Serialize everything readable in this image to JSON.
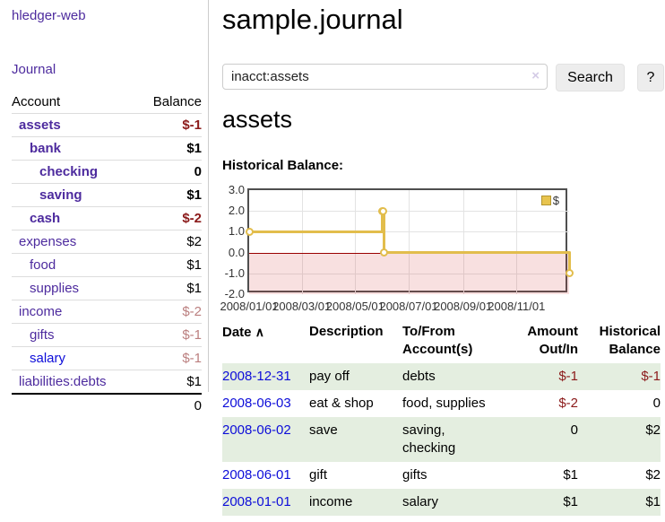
{
  "app": {
    "title": "hledger-web",
    "nav_journal": "Journal"
  },
  "sidebar": {
    "header": {
      "account": "Account",
      "balance": "Balance"
    },
    "rows": [
      {
        "name": "assets",
        "balance": "$-1",
        "depth": 1,
        "bold": true,
        "link_color": "purple",
        "balance_color": "neg-strong"
      },
      {
        "name": "bank",
        "balance": "$1",
        "depth": 2,
        "bold": true,
        "link_color": "purple",
        "balance_color": "default"
      },
      {
        "name": "checking",
        "balance": "0",
        "depth": 3,
        "bold": true,
        "link_color": "purple",
        "balance_color": "default"
      },
      {
        "name": "saving",
        "balance": "$1",
        "depth": 3,
        "bold": true,
        "link_color": "purple",
        "balance_color": "default"
      },
      {
        "name": "cash",
        "balance": "$-2",
        "depth": 2,
        "bold": true,
        "link_color": "purple",
        "balance_color": "neg-strong"
      },
      {
        "name": "expenses",
        "balance": "$2",
        "depth": 1,
        "bold": false,
        "link_color": "purple",
        "balance_color": "default"
      },
      {
        "name": "food",
        "balance": "$1",
        "depth": 2,
        "bold": false,
        "link_color": "purple",
        "balance_color": "default"
      },
      {
        "name": "supplies",
        "balance": "$1",
        "depth": 2,
        "bold": false,
        "link_color": "purple",
        "balance_color": "default"
      },
      {
        "name": "income",
        "balance": "$-2",
        "depth": 1,
        "bold": false,
        "link_color": "purple",
        "balance_color": "neg-soft"
      },
      {
        "name": "gifts",
        "balance": "$-1",
        "depth": 2,
        "bold": false,
        "link_color": "purple",
        "balance_color": "neg-soft"
      },
      {
        "name": "salary",
        "balance": "$-1",
        "depth": 2,
        "bold": false,
        "link_color": "blue",
        "balance_color": "neg-soft"
      },
      {
        "name": "liabilities:debts",
        "balance": "$1",
        "depth": 1,
        "bold": false,
        "link_color": "purple",
        "balance_color": "default"
      }
    ],
    "total": "0"
  },
  "header": {
    "title": "sample.journal"
  },
  "search": {
    "value": "inacct:assets",
    "clear_icon": "×",
    "button_label": "Search",
    "help_label": "?"
  },
  "account_page": {
    "heading": "assets",
    "chart_title": "Historical Balance:"
  },
  "chart_data": {
    "type": "line",
    "step": true,
    "title": "Historical Balance:",
    "xlim": [
      "2008-01-01",
      "2008-12-31"
    ],
    "ylim": [
      -2,
      3
    ],
    "yticks": [
      3.0,
      2.0,
      1.0,
      0.0,
      -1.0,
      -2.0
    ],
    "ytick_labels": [
      "3.0",
      "2.0",
      "1.0",
      "0.0",
      "-1.0",
      "-2.0"
    ],
    "xticks": [
      {
        "date": "2008-01-01",
        "label": "2008/01/01"
      },
      {
        "date": "2008-03-01",
        "label": "2008/03/01"
      },
      {
        "date": "2008-05-01",
        "label": "2008/05/01"
      },
      {
        "date": "2008-07-01",
        "label": "2008/07/01"
      },
      {
        "date": "2008-09-01",
        "label": "2008/09/01"
      },
      {
        "date": "2008-11-01",
        "label": "2008/11/01"
      }
    ],
    "series": [
      {
        "name": "$",
        "color": "#e2bd4c",
        "points": [
          [
            "2008-01-01",
            1
          ],
          [
            "2008-06-01",
            2
          ],
          [
            "2008-06-02",
            2
          ],
          [
            "2008-06-03",
            0
          ],
          [
            "2008-12-31",
            -1
          ]
        ]
      }
    ],
    "legend_position": "top-right",
    "grid": true,
    "zero_line_color": "#990000",
    "negative_region_color": "#f8dada"
  },
  "register": {
    "sort_indicator": "∧",
    "columns": [
      {
        "label": "Date",
        "align": "left"
      },
      {
        "label": "Description",
        "align": "left"
      },
      {
        "label": "To/From\nAccount(s)",
        "align": "left"
      },
      {
        "label": "Amount\nOut/In",
        "align": "right"
      },
      {
        "label": "Historical\nBalance",
        "align": "right"
      }
    ],
    "rows": [
      {
        "date": "2008-12-31",
        "description": "pay off",
        "accounts": "debts",
        "amount": "$-1",
        "amount_negative": true,
        "balance": "$-1",
        "balance_negative": true,
        "highlight": true
      },
      {
        "date": "2008-06-03",
        "description": "eat & shop",
        "accounts": "food, supplies",
        "amount": "$-2",
        "amount_negative": true,
        "balance": "0",
        "balance_negative": false,
        "highlight": false
      },
      {
        "date": "2008-06-02",
        "description": "save",
        "accounts": "saving, checking",
        "amount": "0",
        "amount_negative": false,
        "balance": "$2",
        "balance_negative": false,
        "highlight": true
      },
      {
        "date": "2008-06-01",
        "description": "gift",
        "accounts": "gifts",
        "amount": "$1",
        "amount_negative": false,
        "balance": "$2",
        "balance_negative": false,
        "highlight": false
      },
      {
        "date": "2008-01-01",
        "description": "income",
        "accounts": "salary",
        "amount": "$1",
        "amount_negative": false,
        "balance": "$1",
        "balance_negative": false,
        "highlight": true
      }
    ]
  }
}
